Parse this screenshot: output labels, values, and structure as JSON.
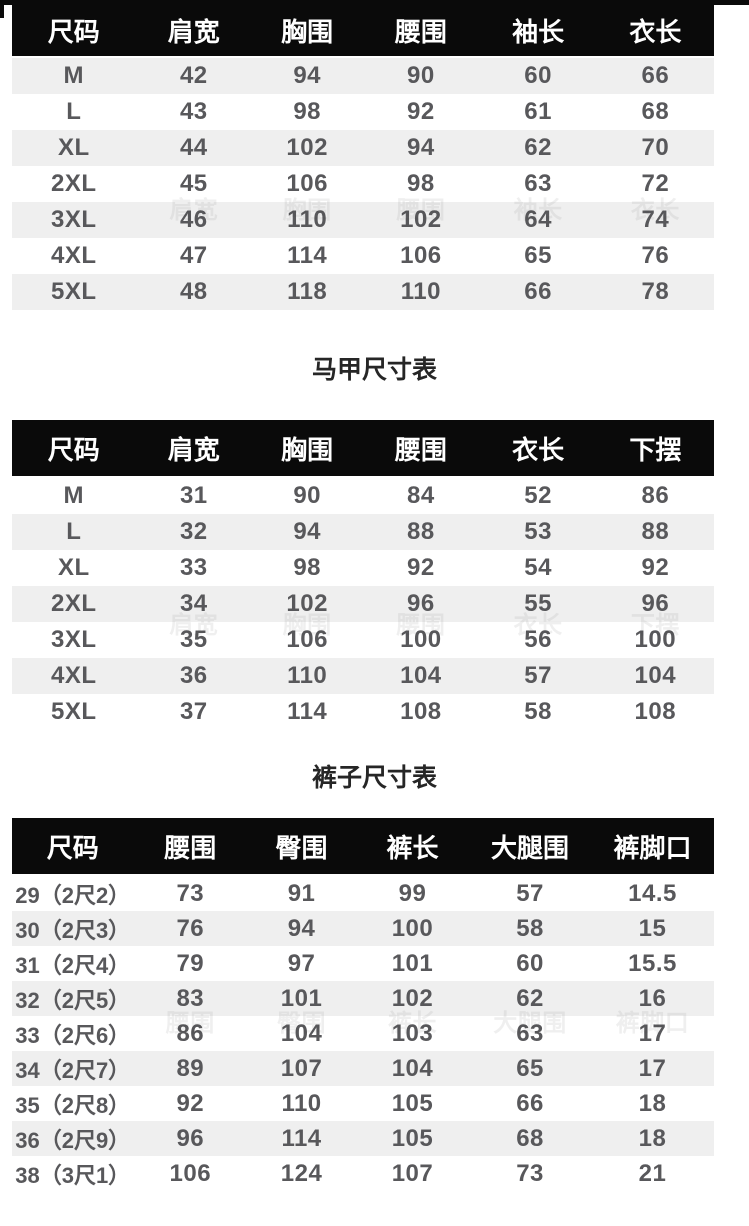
{
  "colors": {
    "page_bg": "#ffffff",
    "header_bg": "#0a0a0a",
    "header_text": "#ffffff",
    "body_text": "#58585b",
    "stripe_bg": "#efefef",
    "title_text": "#262626"
  },
  "tables": [
    {
      "name": "tops-size-table",
      "title": "",
      "stripe": "even",
      "columns": [
        "尺码",
        "肩宽",
        "胸围",
        "腰围",
        "袖长",
        "衣长"
      ],
      "rows": [
        [
          "M",
          "42",
          "94",
          "90",
          "60",
          "66"
        ],
        [
          "L",
          "43",
          "98",
          "92",
          "61",
          "68"
        ],
        [
          "XL",
          "44",
          "102",
          "94",
          "62",
          "70"
        ],
        [
          "2XL",
          "45",
          "106",
          "98",
          "63",
          "72"
        ],
        [
          "3XL",
          "46",
          "110",
          "102",
          "64",
          "74"
        ],
        [
          "4XL",
          "47",
          "114",
          "106",
          "65",
          "76"
        ],
        [
          "5XL",
          "48",
          "118",
          "110",
          "66",
          "78"
        ]
      ]
    },
    {
      "name": "vest-size-table",
      "title": "马甲尺寸表",
      "stripe": "odd",
      "columns": [
        "尺码",
        "肩宽",
        "胸围",
        "腰围",
        "衣长",
        "下摆"
      ],
      "rows": [
        [
          "M",
          "31",
          "90",
          "84",
          "52",
          "86"
        ],
        [
          "L",
          "32",
          "94",
          "88",
          "53",
          "88"
        ],
        [
          "XL",
          "33",
          "98",
          "92",
          "54",
          "92"
        ],
        [
          "2XL",
          "34",
          "102",
          "96",
          "55",
          "96"
        ],
        [
          "3XL",
          "35",
          "106",
          "100",
          "56",
          "100"
        ],
        [
          "4XL",
          "36",
          "110",
          "104",
          "57",
          "104"
        ],
        [
          "5XL",
          "37",
          "114",
          "108",
          "58",
          "108"
        ]
      ]
    },
    {
      "name": "pants-size-table",
      "title": "裤子尺寸表",
      "stripe": "odd",
      "columns": [
        "尺码",
        "腰围",
        "臀围",
        "裤长",
        "大腿围",
        "裤脚口"
      ],
      "rows": [
        [
          "29（2尺2）",
          "73",
          "91",
          "99",
          "57",
          "14.5"
        ],
        [
          "30（2尺3）",
          "76",
          "94",
          "100",
          "58",
          "15"
        ],
        [
          "31（2尺4）",
          "79",
          "97",
          "101",
          "60",
          "15.5"
        ],
        [
          "32（2尺5）",
          "83",
          "101",
          "102",
          "62",
          "16"
        ],
        [
          "33（2尺6）",
          "86",
          "104",
          "103",
          "63",
          "17"
        ],
        [
          "34（2尺7）",
          "89",
          "107",
          "104",
          "65",
          "17"
        ],
        [
          "35（2尺8）",
          "92",
          "110",
          "105",
          "66",
          "18"
        ],
        [
          "36（2尺9）",
          "96",
          "114",
          "105",
          "68",
          "18"
        ],
        [
          "38（3尺1）",
          "106",
          "124",
          "107",
          "73",
          "21"
        ]
      ]
    }
  ]
}
